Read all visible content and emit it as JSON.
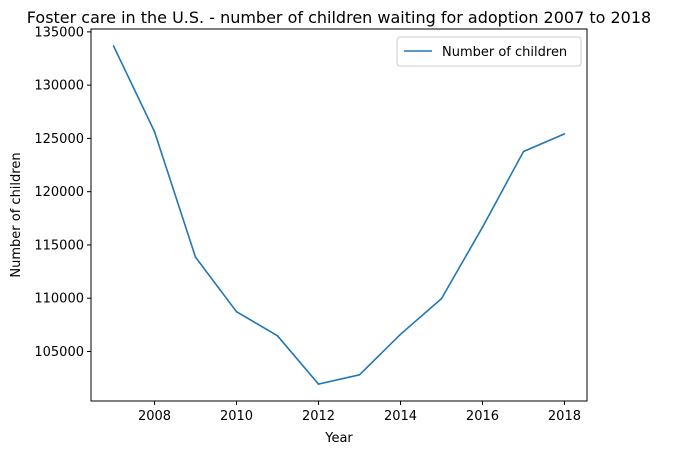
{
  "chart_data": {
    "type": "line",
    "title": "Foster care in the U.S. - number of children waiting for adoption 2007 to 2018",
    "xlabel": "Year",
    "ylabel": "Number of children",
    "x": [
      2007,
      2008,
      2009,
      2010,
      2011,
      2012,
      2013,
      2014,
      2015,
      2016,
      2017,
      2018
    ],
    "series": [
      {
        "name": "Number of children",
        "color": "#1f77b4",
        "values": [
          133682,
          125640,
          113859,
          108734,
          106468,
          101939,
          102813,
          106610,
          109959,
          116667,
          123768,
          125422
        ]
      }
    ],
    "x_ticks": [
      2008,
      2010,
      2012,
      2014,
      2016,
      2018
    ],
    "y_ticks": [
      105000,
      110000,
      115000,
      120000,
      125000,
      130000,
      135000
    ],
    "xlim": [
      2006.45,
      2018.55
    ],
    "ylim": [
      100352,
      135269
    ],
    "grid": false,
    "legend_position": "top-right"
  }
}
